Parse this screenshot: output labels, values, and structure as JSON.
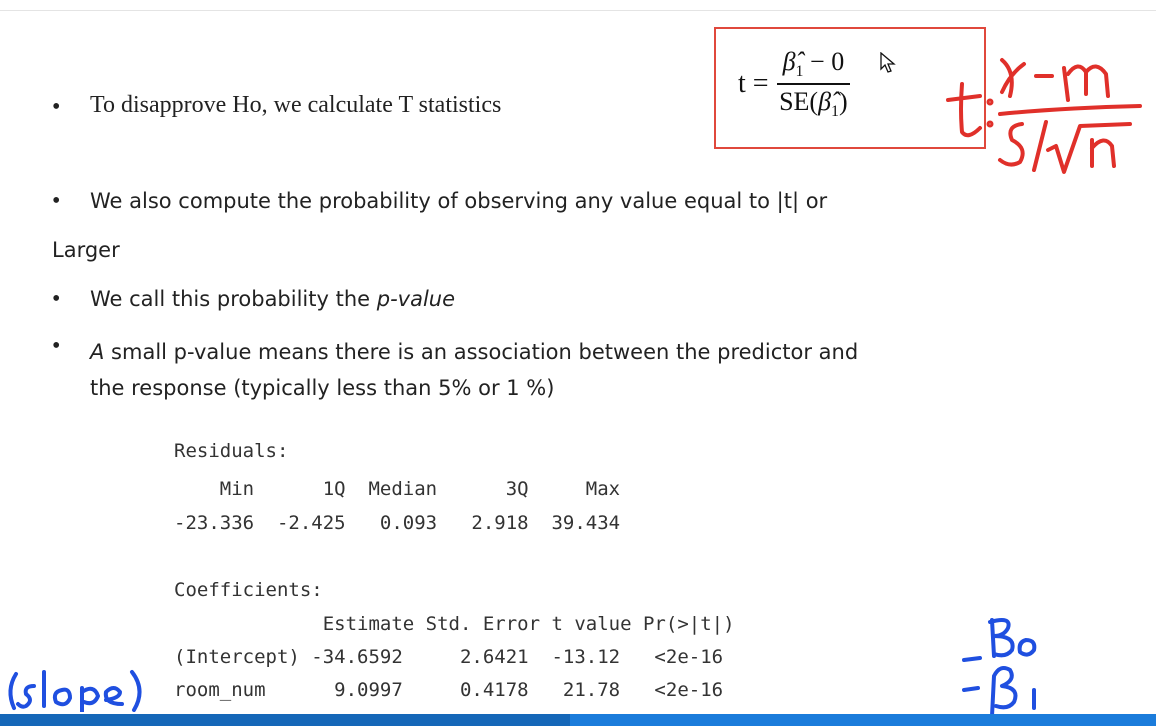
{
  "slide": {
    "bullet1": "To disapprove  Ho, we calculate T statistics",
    "bullet2": "We also compute the probability of observing any value equal to |t| or",
    "continuation": "Larger",
    "bullet3_prefix": "We call this probability the ",
    "bullet3_italic": "p-value",
    "bullet4_italic": "A",
    "bullet4_line1": " small p-value means there is an association between the predictor and",
    "bullet4_line2": "the response (typically less than 5% or 1 %)",
    "bullet_symbol": "•"
  },
  "formula": {
    "lhs": "t =",
    "numerator_beta": "β̂",
    "numerator_sub": "1",
    "numerator_rest": " − 0",
    "denominator_se": "SE(",
    "denominator_beta": "β̂",
    "denominator_sub": "1",
    "denominator_close": ")",
    "box_color": "#e0483c"
  },
  "regression_output": {
    "residuals_title": "Residuals:",
    "residuals_header": "    Min      1Q  Median      3Q     Max",
    "residuals_values": "-23.336  -2.425   0.093   2.918  39.434",
    "coefficients_title": "Coefficients:",
    "coef_header": "             Estimate Std. Error t value Pr(>|t|)",
    "coef_row1": "(Intercept) -34.6592     2.6421  -13.12   <2e-16",
    "coef_row2": "room_num      9.0997     0.4178   21.78   <2e-16"
  },
  "annotations": {
    "ink_color": "#1f4fe0",
    "red_ink_color": "#e0302a"
  }
}
